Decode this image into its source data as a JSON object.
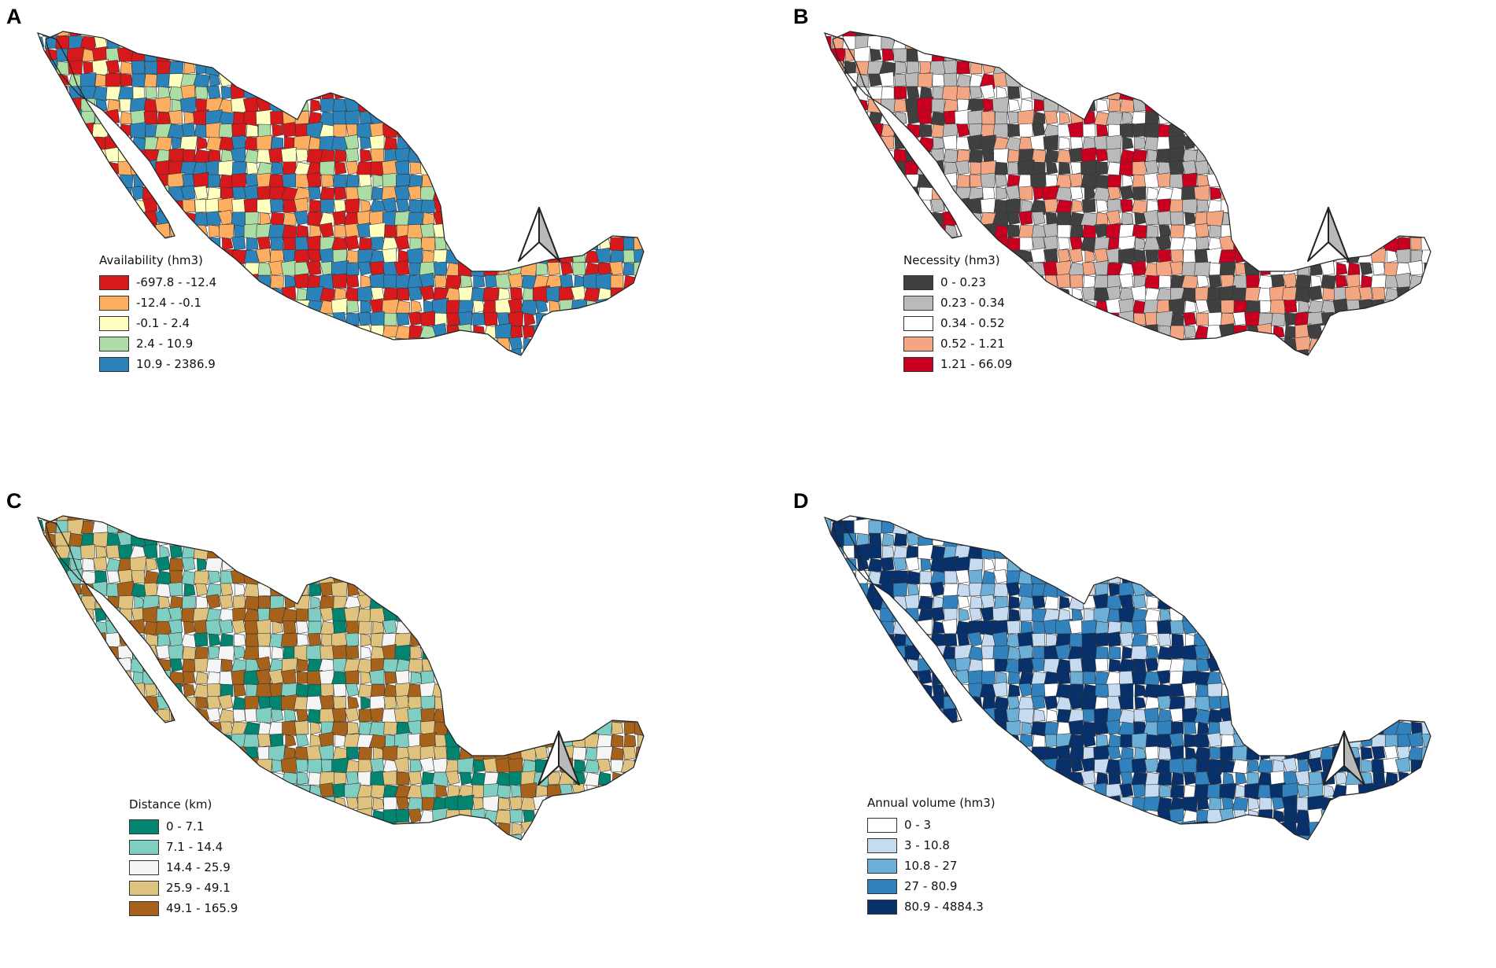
{
  "colors": {
    "outline": "#222222",
    "arrow_fill_left": "#ffffff",
    "arrow_fill_right": "#b9b9b9"
  },
  "panels": [
    {
      "letter": "A",
      "legend": {
        "title": "Availability (hm3)",
        "classes": [
          {
            "label": "-697.8 - -12.4",
            "color": "#d7191c"
          },
          {
            "label": "-12.4 - -0.1",
            "color": "#fdae61"
          },
          {
            "label": "-0.1 - 2.4",
            "color": "#ffffbf"
          },
          {
            "label": "2.4 - 10.9",
            "color": "#abdda4"
          },
          {
            "label": "10.9 - 2386.9",
            "color": "#2b83ba"
          }
        ]
      },
      "icon": "north-arrow-icon"
    },
    {
      "letter": "B",
      "legend": {
        "title": "Necessity (hm3)",
        "classes": [
          {
            "label": "0 - 0.23",
            "color": "#404040"
          },
          {
            "label": "0.23 - 0.34",
            "color": "#bababa"
          },
          {
            "label": "0.34 - 0.52",
            "color": "#ffffff"
          },
          {
            "label": "0.52 - 1.21",
            "color": "#f4a582"
          },
          {
            "label": "1.21 - 66.09",
            "color": "#ca0020"
          }
        ]
      },
      "icon": "north-arrow-icon"
    },
    {
      "letter": "C",
      "legend": {
        "title": "Distance (km)",
        "classes": [
          {
            "label": "0 - 7.1",
            "color": "#018571"
          },
          {
            "label": "7.1 - 14.4",
            "color": "#80cdc1"
          },
          {
            "label": "14.4 - 25.9",
            "color": "#f5f5f5"
          },
          {
            "label": "25.9 - 49.1",
            "color": "#dfc27d"
          },
          {
            "label": "49.1 - 165.9",
            "color": "#a6611a"
          }
        ]
      },
      "icon": "north-arrow-icon"
    },
    {
      "letter": "D",
      "legend": {
        "title": "Annual volume (hm3)",
        "classes": [
          {
            "label": "0 - 3",
            "color": "#ffffff"
          },
          {
            "label": "3 - 10.8",
            "color": "#c6dbef"
          },
          {
            "label": "10.8 - 27",
            "color": "#6baed6"
          },
          {
            "label": "27 - 80.9",
            "color": "#3182bd"
          },
          {
            "label": "80.9 - 4884.3",
            "color": "#08306b"
          }
        ]
      },
      "icon": "north-arrow-icon"
    }
  ]
}
